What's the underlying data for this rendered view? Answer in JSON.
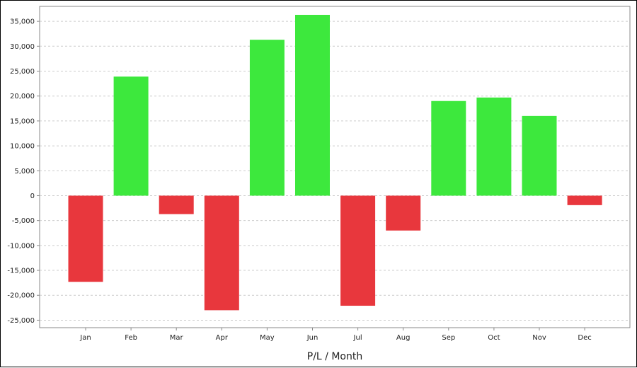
{
  "chart_data": {
    "type": "bar",
    "title": "",
    "xlabel": "P/L / Month",
    "ylabel": "",
    "categories": [
      "Jan",
      "Feb",
      "Mar",
      "Apr",
      "May",
      "Jun",
      "Jul",
      "Aug",
      "Sep",
      "Oct",
      "Nov",
      "Dec"
    ],
    "values": [
      -17300,
      23900,
      -3700,
      -23000,
      31300,
      36300,
      -22100,
      -7000,
      19000,
      19700,
      16000,
      -1900
    ],
    "ylim": [
      -26500,
      38000
    ],
    "yticks": [
      -25000,
      -20000,
      -15000,
      -10000,
      -5000,
      0,
      5000,
      10000,
      15000,
      20000,
      25000,
      30000,
      35000
    ],
    "ytick_labels": [
      "-25,000",
      "-20,000",
      "-15,000",
      "-10,000",
      "-5,000",
      "0",
      "5,000",
      "10,000",
      "15,000",
      "20,000",
      "25,000",
      "30,000",
      "35,000"
    ],
    "grid": true,
    "colors": {
      "positive": "#3de83d",
      "negative": "#e8373d",
      "grid": "#cccccc",
      "axis": "#888888"
    }
  }
}
